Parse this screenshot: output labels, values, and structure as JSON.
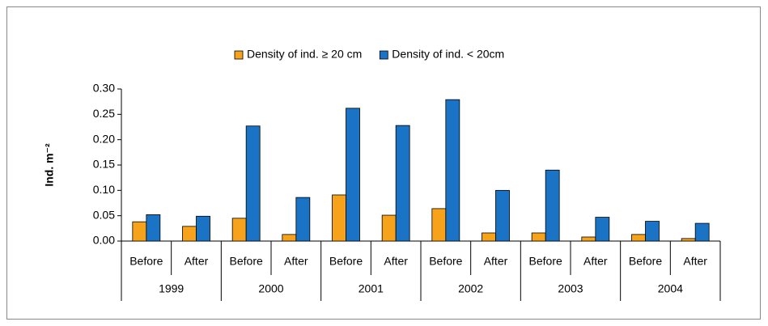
{
  "chart_data": {
    "type": "bar",
    "y_label": "Ind. m⁻²",
    "categories": [
      "Before",
      "After",
      "Before",
      "After",
      "Before",
      "After",
      "Before",
      "After",
      "Before",
      "After",
      "Before",
      "After"
    ],
    "groups": [
      "1999",
      "2000",
      "2001",
      "2002",
      "2003",
      "2004"
    ],
    "series": [
      {
        "name": "Density of ind. ≥ 20 cm",
        "color": "#f7a21b",
        "values": [
          0.038,
          0.029,
          0.045,
          0.013,
          0.091,
          0.051,
          0.064,
          0.016,
          0.016,
          0.008,
          0.013,
          0.005
        ]
      },
      {
        "name": "Density of ind. < 20cm",
        "color": "#1a73c4",
        "values": [
          0.052,
          0.049,
          0.227,
          0.086,
          0.262,
          0.228,
          0.279,
          0.1,
          0.14,
          0.047,
          0.039,
          0.035
        ]
      }
    ],
    "ylim": [
      0,
      0.3
    ],
    "yticks": [
      {
        "value": 0,
        "label": "0.00"
      },
      {
        "value": 0.05,
        "label": "0.05"
      },
      {
        "value": 0.1,
        "label": "0.10"
      },
      {
        "value": 0.15,
        "label": "0.15"
      },
      {
        "value": 0.2,
        "label": "0.20"
      },
      {
        "value": 0.25,
        "label": "0.25"
      },
      {
        "value": 0.3,
        "label": "0.30"
      }
    ],
    "legend": "top"
  }
}
